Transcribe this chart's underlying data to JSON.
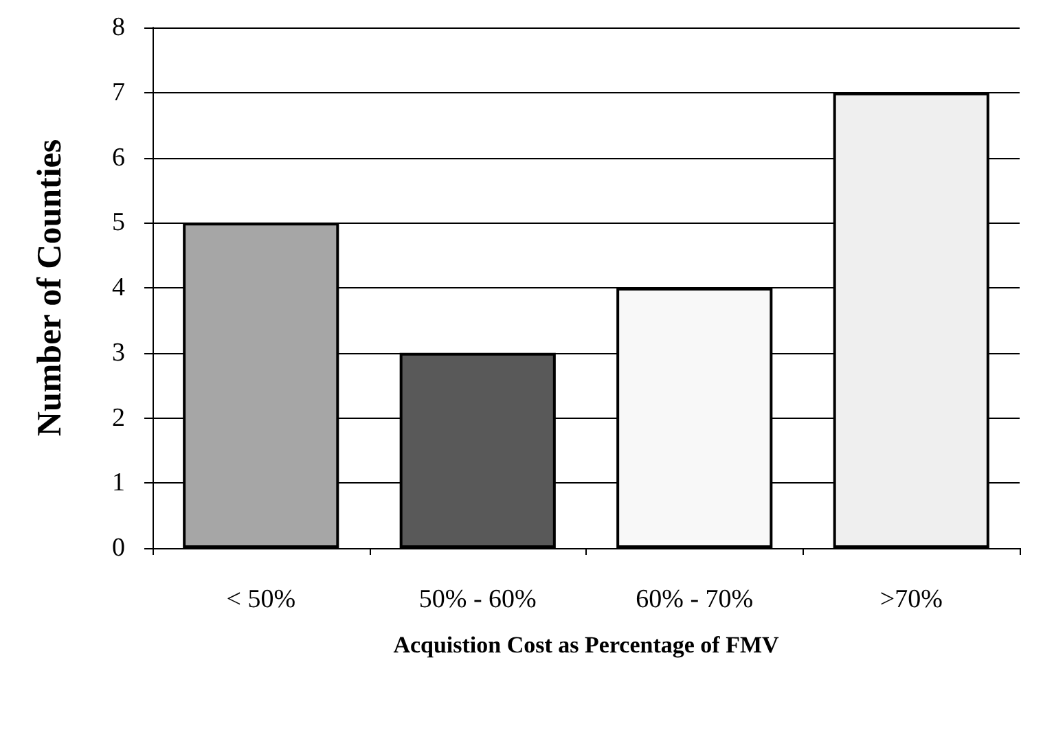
{
  "chart_data": {
    "type": "bar",
    "xlabel": "Acquistion Cost as Percentage of FMV",
    "ylabel": "Number of Counties",
    "categories": [
      "< 50%",
      "50% - 60%",
      "60% - 70%",
      ">70%"
    ],
    "values": [
      5,
      3,
      4,
      7
    ],
    "colors": [
      "#a6a6a6",
      "#595959",
      "#f8f8f8",
      "#efefef"
    ],
    "ylim": [
      0,
      8
    ],
    "yticks": [
      0,
      1,
      2,
      3,
      4,
      5,
      6,
      7,
      8
    ],
    "grid": "y"
  }
}
